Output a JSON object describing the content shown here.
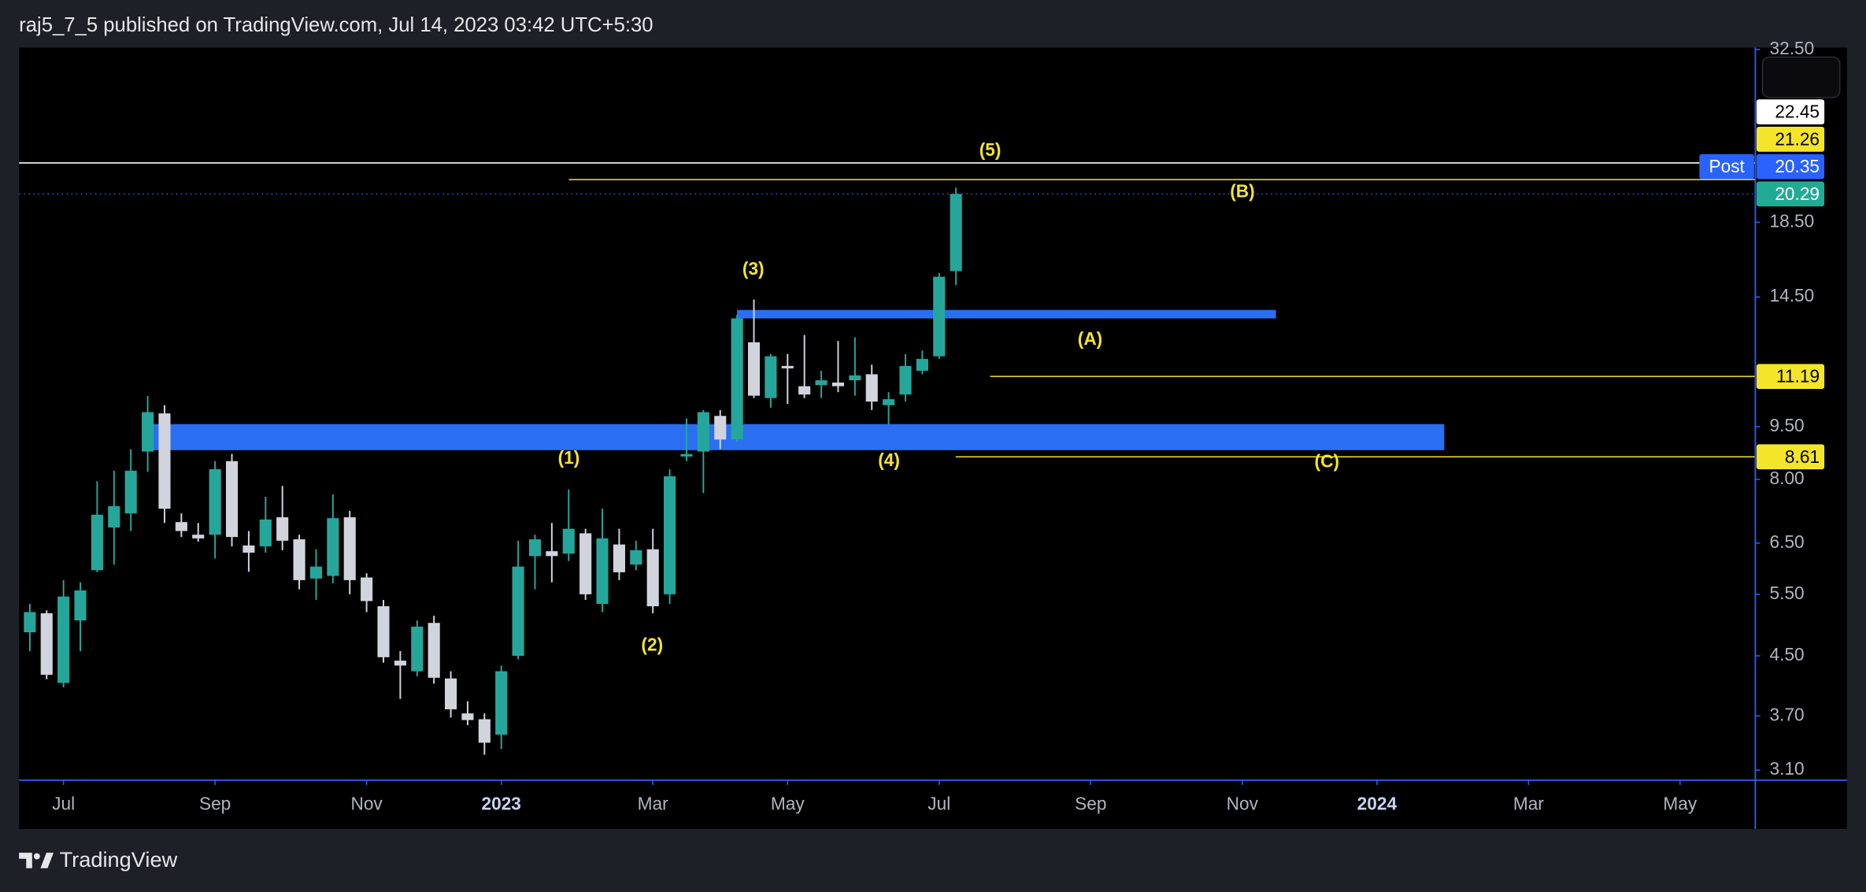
{
  "header": {
    "text": "raj5_7_5 published on TradingView.com, Jul 14, 2023 03:42 UTC+5:30"
  },
  "footer": {
    "brand": "TradingView"
  },
  "chart_data": {
    "type": "candlestick",
    "log_scale": true,
    "up_color": "#26a69a",
    "down_color": "#d1d4dc",
    "x": [
      0,
      1,
      2,
      3,
      4,
      5,
      6,
      7,
      8,
      9,
      10,
      11,
      12,
      13,
      14,
      15,
      16,
      17,
      18,
      19,
      20,
      21,
      22,
      23,
      24,
      25,
      26,
      27,
      28,
      29,
      30,
      31,
      32,
      33,
      34,
      35,
      36,
      37,
      38,
      39,
      40,
      41,
      42,
      43,
      44,
      45,
      46,
      47,
      48,
      49,
      50,
      51,
      52,
      53,
      54,
      55
    ],
    "open": [
      4.86,
      5.17,
      4.12,
      5.05,
      5.95,
      6.84,
      7.16,
      8.76,
      9.92,
      6.96,
      6.68,
      6.68,
      8.49,
      6.45,
      6.43,
      7.07,
      6.58,
      5.79,
      5.84,
      7.07,
      5.81,
      5.29,
      4.43,
      4.28,
      5.01,
      4.18,
      3.73,
      3.66,
      3.48,
      4.5,
      6.23,
      6.33,
      6.28,
      6.71,
      5.33,
      6.47,
      6.06,
      6.37,
      5.5,
      8.62,
      8.76,
      9.84,
      9.11,
      12.51,
      10.43,
      11.58,
      10.84,
      10.88,
      10.97,
      11.05,
      11.27,
      10.19,
      10.55,
      11.4,
      11.95,
      15.78
    ],
    "high": [
      5.33,
      5.22,
      5.76,
      5.72,
      7.95,
      8.23,
      8.83,
      10.5,
      10.19,
      7.16,
      6.94,
      8.49,
      8.69,
      6.76,
      7.56,
      7.83,
      6.68,
      6.37,
      7.62,
      7.22,
      5.89,
      5.4,
      4.57,
      5.05,
      5.13,
      4.28,
      3.88,
      3.73,
      4.36,
      6.55,
      6.68,
      6.94,
      7.74,
      6.81,
      7.27,
      6.81,
      6.55,
      6.81,
      8.27,
      9.76,
      10.03,
      10.03,
      13.68,
      14.38,
      12.04,
      12.04,
      12.81,
      11.4,
      12.56,
      12.71,
      11.63,
      10.63,
      12.04,
      12.18,
      15.67,
      20.71
    ],
    "low": [
      4.57,
      4.17,
      4.06,
      4.57,
      5.91,
      6.06,
      6.76,
      8.2,
      6.94,
      6.63,
      6.53,
      6.18,
      6.43,
      5.92,
      6.3,
      6.35,
      5.59,
      5.4,
      5.7,
      5.5,
      5.19,
      4.4,
      3.91,
      4.21,
      4.11,
      3.68,
      3.59,
      3.26,
      3.32,
      4.45,
      5.59,
      5.72,
      6.13,
      5.4,
      5.19,
      5.76,
      5.95,
      5.17,
      5.33,
      8.49,
      7.65,
      8.83,
      9.04,
      10.43,
      10.11,
      10.23,
      10.43,
      10.43,
      10.63,
      10.51,
      10.03,
      9.58,
      10.31,
      11.27,
      11.85,
      15.07
    ],
    "close": [
      5.19,
      4.23,
      5.46,
      5.57,
      7.13,
      7.33,
      8.23,
      9.96,
      7.27,
      6.76,
      6.6,
      8.27,
      6.63,
      6.3,
      7.02,
      6.55,
      5.76,
      6.02,
      7.05,
      5.76,
      5.38,
      4.48,
      4.36,
      4.95,
      4.19,
      3.78,
      3.65,
      3.39,
      4.28,
      6.02,
      6.58,
      6.23,
      6.81,
      5.5,
      6.6,
      5.91,
      6.35,
      5.29,
      8.08,
      8.69,
      9.96,
      9.11,
      13.52,
      10.51,
      11.95,
      11.49,
      10.55,
      11.05,
      10.84,
      11.23,
      10.31,
      10.39,
      11.58,
      11.85,
      15.49,
      20.29
    ],
    "xlim": [
      -0.64,
      102.47
    ],
    "xticks": [
      {
        "value": 2,
        "label": "Jul"
      },
      {
        "value": 11,
        "label": "Sep"
      },
      {
        "value": 20,
        "label": "Nov"
      },
      {
        "value": 28,
        "label": "2023"
      },
      {
        "value": 37,
        "label": "Mar"
      },
      {
        "value": 45,
        "label": "May"
      },
      {
        "value": 54,
        "label": "Jul"
      },
      {
        "value": 63,
        "label": "Sep"
      },
      {
        "value": 72,
        "label": "Nov"
      },
      {
        "value": 80,
        "label": "2024"
      },
      {
        "value": 89,
        "label": "Mar"
      },
      {
        "value": 98,
        "label": "May"
      }
    ],
    "ylim": [
      3.0,
      32.7
    ],
    "yticks": [
      {
        "value": 3.1,
        "label": "3.10"
      },
      {
        "value": 3.7,
        "label": "3.70"
      },
      {
        "value": 4.5,
        "label": "4.50"
      },
      {
        "value": 5.5,
        "label": "5.50"
      },
      {
        "value": 6.5,
        "label": "6.50"
      },
      {
        "value": 8,
        "label": "8.00"
      },
      {
        "value": 9.5,
        "label": "9.50"
      },
      {
        "value": 14.5,
        "label": "14.50"
      },
      {
        "value": 18.5,
        "label": "18.50"
      },
      {
        "value": 32.5,
        "label": "32.50"
      }
    ],
    "zones": [
      {
        "top": 9.58,
        "bottom": 8.8,
        "color": "#2a6ff2"
      },
      {
        "top": 13.9,
        "bottom": 13.52,
        "color": "#2a6ff2"
      }
    ],
    "price_lines": [
      {
        "value": 22.45,
        "color": "#ffffff",
        "text_color": "#000000"
      },
      {
        "value": 21.26,
        "color": "#f5e52a",
        "text_color": "#000000"
      },
      {
        "value": 20.35,
        "color": "#2962ff",
        "text_color": "#ffffff",
        "tag": "Post"
      },
      {
        "value": 20.29,
        "color": "#22ab94",
        "text_color": "#ffffff"
      },
      {
        "value": 11.19,
        "color": "#f5e52a",
        "text_color": "#000000"
      },
      {
        "value": 8.61,
        "color": "#f5e52a",
        "text_color": "#000000"
      }
    ],
    "annotations": [
      "(5)",
      "(B)",
      "(3)",
      "(A)",
      "(1)",
      "(4)",
      "(C)",
      "(2)"
    ],
    "annotation_color": "#f5e52a"
  }
}
